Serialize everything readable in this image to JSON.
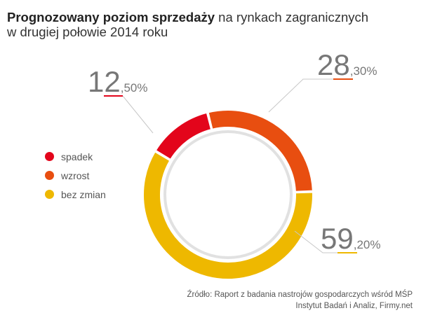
{
  "title": {
    "bold": "Prognozowany poziom sprzedaży",
    "rest": " na rynkach zagranicznych",
    "line2": "w drugiej połowie 2014 roku"
  },
  "chart_data": {
    "type": "pie",
    "variant": "donut",
    "title": "Prognozowany poziom sprzedaży na rynkach zagranicznych w drugiej połowie 2014 roku",
    "categories": [
      "spadek",
      "wzrost",
      "bez zmian"
    ],
    "values": [
      12.5,
      28.3,
      59.2
    ],
    "labels": [
      {
        "int": "12",
        "dec": ",50%"
      },
      {
        "int": "28",
        "dec": ",30%"
      },
      {
        "int": "59",
        "dec": ",20%"
      }
    ],
    "colors": [
      "#e3051b",
      "#e84e10",
      "#eeb800"
    ],
    "legend_position": "left"
  },
  "source": {
    "line1": "Źródło: Raport z badania nastrojów gospodarczych wśród MŚP",
    "line2": "Instytut Badań i Analiz, Firmy.net"
  }
}
